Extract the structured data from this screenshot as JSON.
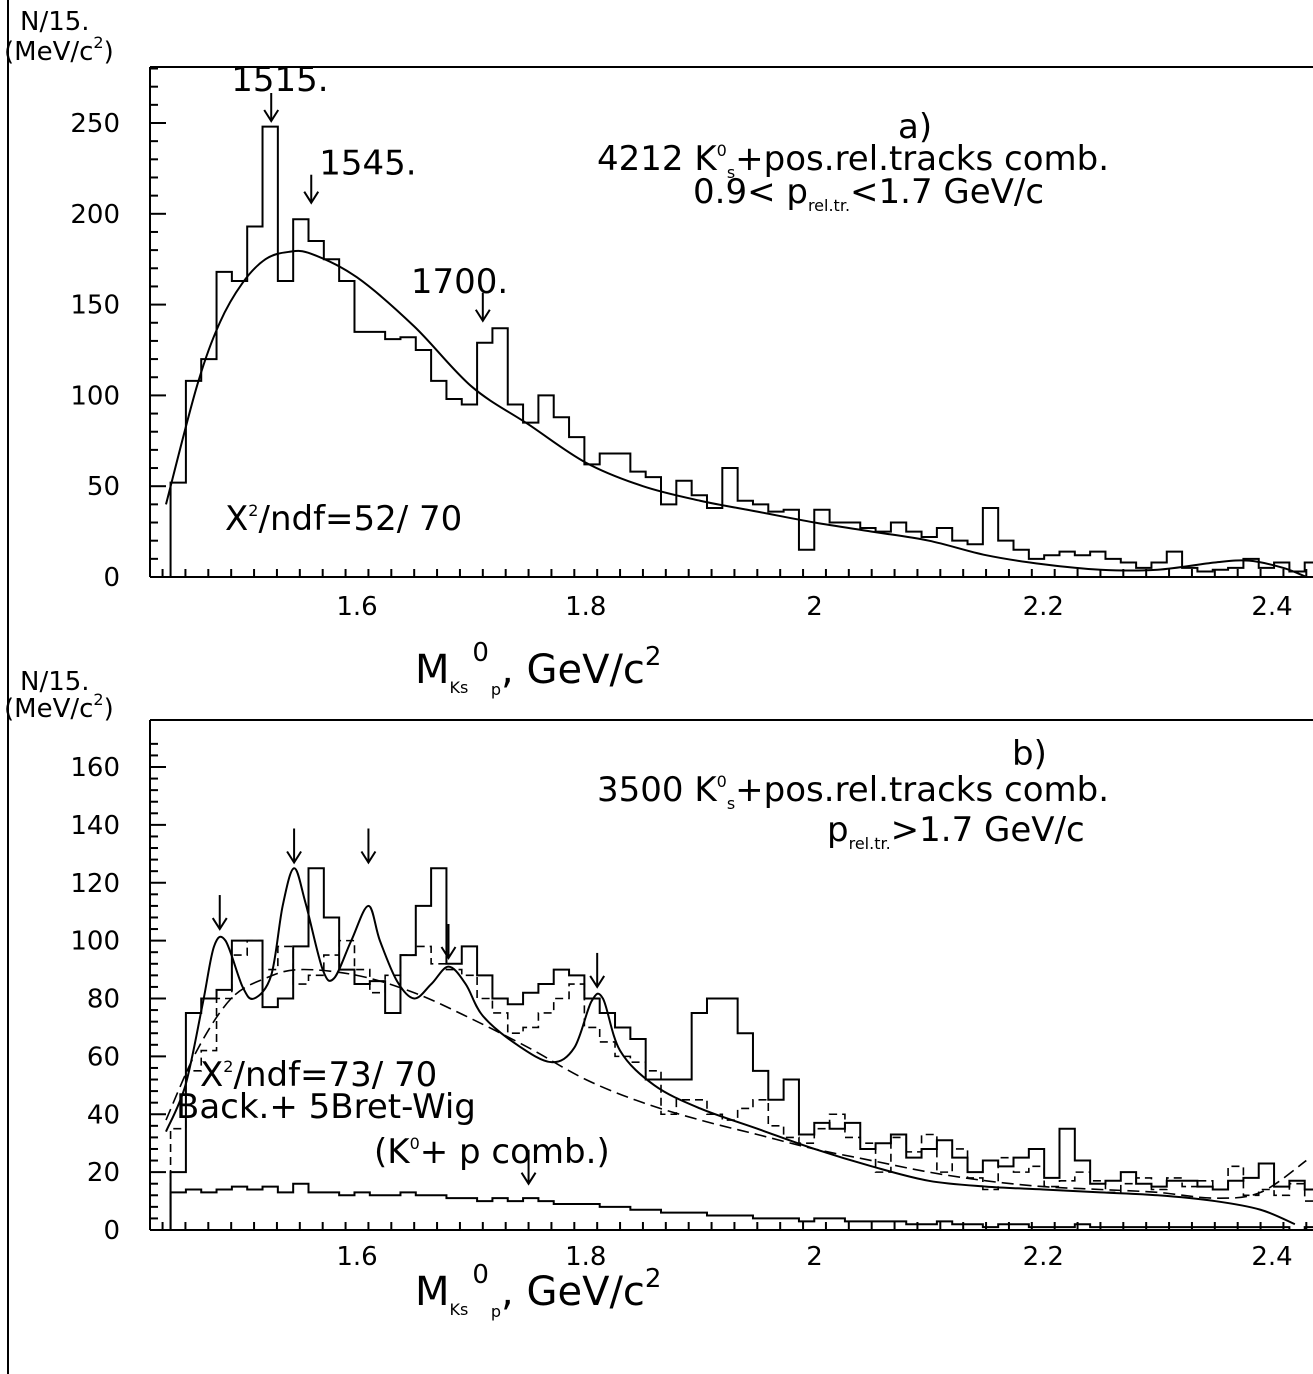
{
  "chart_data": [
    {
      "type": "line",
      "panel_label": "a)",
      "ylabel_top": "N/15.",
      "ylabel_bottom": "(MeV/c",
      "ylabel_sup": "2",
      "xlabel_main": "M",
      "xlabel_sub1": "Ks",
      "xlabel_sup": "0",
      "xlabel_sub2": "p",
      "xlabel_tail": ", GeV/c",
      "xlabel_sup2": "2",
      "annotation_line1_a": "4212 K",
      "annotation_line1_sup": "0",
      "annotation_line1_sub": "s",
      "annotation_line1_b": "+pos.rel.tracks comb.",
      "annotation_line2_a": "0.9< p",
      "annotation_line2_sub": "rel.tr.",
      "annotation_line2_b": "<1.7 GeV/c",
      "chi2_a": "X",
      "chi2_sup": "2",
      "chi2_b": "/ndf=52/ 70",
      "peak_labels": [
        {
          "text": "1515.",
          "x": 1.525,
          "y_arrow": 250
        },
        {
          "text": "1545.",
          "x": 1.56,
          "y_arrow": 205
        },
        {
          "text": "1700.",
          "x": 1.71,
          "y_arrow": 140
        }
      ],
      "xlim": [
        1.43,
        2.43
      ],
      "ylim": [
        0,
        280
      ],
      "xticks": [
        1.6,
        1.8,
        2,
        2.2,
        2.4
      ],
      "xtick_labels": [
        "1.6",
        "1.8",
        "2",
        "2.2",
        "2.4"
      ],
      "yticks": [
        0,
        50,
        100,
        150,
        200,
        250
      ],
      "ytick_labels": [
        "0",
        "50",
        "100",
        "150",
        "200",
        "250"
      ],
      "bin_start": 1.437,
      "bin_width": 0.0134,
      "histogram": [
        52,
        108,
        120,
        168,
        163,
        193,
        248,
        163,
        197,
        185,
        175,
        163,
        135,
        135,
        131,
        132,
        125,
        108,
        98,
        95,
        129,
        137,
        95,
        85,
        100,
        88,
        77,
        62,
        68,
        68,
        58,
        55,
        40,
        53,
        45,
        38,
        60,
        42,
        40,
        36,
        37,
        15,
        37,
        30,
        30,
        27,
        25,
        30,
        25,
        22,
        27,
        20,
        18,
        38,
        20,
        15,
        10,
        12,
        14,
        12,
        14,
        10,
        8,
        5,
        8,
        14,
        5,
        3,
        4,
        5,
        10,
        5,
        8,
        3,
        8,
        8,
        3,
        5,
        6,
        4,
        10,
        6
      ],
      "fit_curve": [
        [
          1.433,
          40
        ],
        [
          1.46,
          105
        ],
        [
          1.48,
          140
        ],
        [
          1.5,
          162
        ],
        [
          1.52,
          175
        ],
        [
          1.54,
          179
        ],
        [
          1.56,
          178
        ],
        [
          1.6,
          165
        ],
        [
          1.65,
          138
        ],
        [
          1.7,
          105
        ],
        [
          1.75,
          84
        ],
        [
          1.8,
          63
        ],
        [
          1.85,
          50
        ],
        [
          1.9,
          42
        ],
        [
          1.95,
          36
        ],
        [
          2.0,
          30
        ],
        [
          2.05,
          25
        ],
        [
          2.1,
          20
        ],
        [
          2.15,
          12
        ],
        [
          2.2,
          7
        ],
        [
          2.25,
          4
        ],
        [
          2.3,
          4
        ],
        [
          2.35,
          8
        ],
        [
          2.38,
          9
        ],
        [
          2.41,
          5
        ],
        [
          2.43,
          0
        ]
      ]
    },
    {
      "type": "line",
      "panel_label": "b)",
      "ylabel_top": "N/15.",
      "ylabel_bottom": "(MeV/c",
      "ylabel_sup": "2",
      "xlabel_main": "M",
      "xlabel_sub1": "Ks",
      "xlabel_sup": "0",
      "xlabel_sub2": "p",
      "xlabel_tail": ", GeV/c",
      "xlabel_sup2": "2",
      "annotation_line1_a": "3500 K",
      "annotation_line1_sup": "0",
      "annotation_line1_sub": "s",
      "annotation_line1_b": "+pos.rel.tracks comb.",
      "annotation_line2_a": "p",
      "annotation_line2_sub": "rel.tr.",
      "annotation_line2_b": ">1.7 GeV/c",
      "chi2_a": "X",
      "chi2_sup": "2",
      "chi2_b": "/ndf=73/ 70",
      "fit_label": "Back.+ 5Bret-Wig",
      "comb_label_a": "(K",
      "comb_label_sup": "0",
      "comb_label_b": "+ p comb.)",
      "arrows_x": [
        1.48,
        1.545,
        1.61,
        1.68,
        1.81,
        1.75
      ],
      "arrows_y": [
        104,
        127,
        127,
        94,
        84,
        16
      ],
      "xlim": [
        1.43,
        2.43
      ],
      "ylim": [
        0,
        170
      ],
      "xticks": [
        1.6,
        1.8,
        2,
        2.2,
        2.4
      ],
      "xtick_labels": [
        "1.6",
        "1.8",
        "2",
        "2.2",
        "2.4"
      ],
      "yticks": [
        0,
        20,
        40,
        60,
        80,
        100,
        120,
        140,
        160
      ],
      "ytick_labels": [
        "0",
        "20",
        "40",
        "60",
        "80",
        "100",
        "120",
        "140",
        "160"
      ],
      "bin_start": 1.437,
      "bin_width": 0.0134,
      "histogram": [
        20,
        75,
        80,
        83,
        100,
        100,
        77,
        80,
        98,
        125,
        108,
        90,
        85,
        86,
        75,
        95,
        112,
        125,
        92,
        98,
        88,
        80,
        78,
        82,
        85,
        90,
        88,
        80,
        75,
        70,
        66,
        52,
        52,
        52,
        75,
        80,
        80,
        68,
        55,
        45,
        52,
        33,
        37,
        35,
        37,
        28,
        30,
        33,
        25,
        28,
        31,
        25,
        20,
        24,
        22,
        25,
        28,
        18,
        35,
        24,
        16,
        17,
        20,
        16,
        15,
        17,
        17,
        15,
        14,
        17,
        18,
        23,
        15,
        17,
        14,
        9,
        8,
        16,
        14,
        12,
        8,
        3
      ],
      "dashed_histogram": [
        35,
        55,
        62,
        80,
        95,
        100,
        90,
        98,
        85,
        88,
        95,
        100,
        90,
        82,
        88,
        95,
        98,
        92,
        90,
        88,
        80,
        75,
        68,
        70,
        75,
        80,
        85,
        70,
        65,
        60,
        58,
        55,
        40,
        45,
        45,
        40,
        38,
        42,
        45,
        36,
        32,
        30,
        35,
        40,
        32,
        30,
        20,
        32,
        27,
        33,
        20,
        28,
        18,
        14,
        25,
        20,
        22,
        15,
        17,
        20,
        17,
        13,
        16,
        18,
        14,
        18,
        15,
        17,
        14,
        22,
        12,
        14,
        12,
        16,
        10,
        12,
        15,
        12,
        14,
        20,
        18,
        25
      ],
      "fit_curve": [
        [
          1.433,
          34
        ],
        [
          1.45,
          50
        ],
        [
          1.465,
          78
        ],
        [
          1.475,
          98
        ],
        [
          1.485,
          100
        ],
        [
          1.5,
          84
        ],
        [
          1.51,
          80
        ],
        [
          1.525,
          88
        ],
        [
          1.535,
          112
        ],
        [
          1.545,
          125
        ],
        [
          1.555,
          113
        ],
        [
          1.57,
          90
        ],
        [
          1.58,
          87
        ],
        [
          1.595,
          100
        ],
        [
          1.61,
          112
        ],
        [
          1.62,
          100
        ],
        [
          1.635,
          86
        ],
        [
          1.65,
          80
        ],
        [
          1.665,
          85
        ],
        [
          1.68,
          91
        ],
        [
          1.695,
          85
        ],
        [
          1.71,
          74
        ],
        [
          1.74,
          64
        ],
        [
          1.77,
          58
        ],
        [
          1.79,
          63
        ],
        [
          1.805,
          79
        ],
        [
          1.815,
          80
        ],
        [
          1.83,
          62
        ],
        [
          1.86,
          50
        ],
        [
          1.9,
          42
        ],
        [
          1.95,
          35
        ],
        [
          2.0,
          28
        ],
        [
          2.05,
          22
        ],
        [
          2.1,
          17
        ],
        [
          2.15,
          15
        ],
        [
          2.2,
          14
        ],
        [
          2.25,
          13
        ],
        [
          2.3,
          12
        ],
        [
          2.35,
          10
        ],
        [
          2.39,
          7
        ],
        [
          2.42,
          2
        ]
      ],
      "background_curve": [
        [
          1.433,
          38
        ],
        [
          1.46,
          62
        ],
        [
          1.49,
          80
        ],
        [
          1.52,
          87
        ],
        [
          1.55,
          90
        ],
        [
          1.6,
          88
        ],
        [
          1.65,
          82
        ],
        [
          1.7,
          73
        ],
        [
          1.75,
          63
        ],
        [
          1.8,
          52
        ],
        [
          1.85,
          44
        ],
        [
          1.9,
          38
        ],
        [
          1.95,
          33
        ],
        [
          2.0,
          28
        ],
        [
          2.05,
          24
        ],
        [
          2.1,
          20
        ],
        [
          2.15,
          17
        ],
        [
          2.2,
          15
        ],
        [
          2.25,
          14
        ],
        [
          2.3,
          13
        ],
        [
          2.35,
          11
        ],
        [
          2.39,
          13
        ],
        [
          2.43,
          24
        ]
      ],
      "comb_histogram": [
        13,
        14,
        13,
        14,
        15,
        14,
        15,
        13,
        16,
        13,
        13,
        12,
        13,
        12,
        12,
        13,
        12,
        12,
        11,
        11,
        10,
        11,
        10,
        11,
        10,
        9,
        9,
        9,
        8,
        8,
        7,
        7,
        6,
        6,
        6,
        5,
        5,
        5,
        4,
        4,
        4,
        3,
        4,
        4,
        3,
        3,
        3,
        3,
        2,
        2,
        3,
        2,
        2,
        1,
        2,
        2,
        1,
        1,
        1,
        2,
        1,
        1,
        1,
        1,
        1,
        1,
        1,
        1,
        1,
        1,
        1,
        1,
        1,
        0,
        1,
        1,
        0,
        0,
        0,
        0,
        0,
        0
      ]
    }
  ]
}
